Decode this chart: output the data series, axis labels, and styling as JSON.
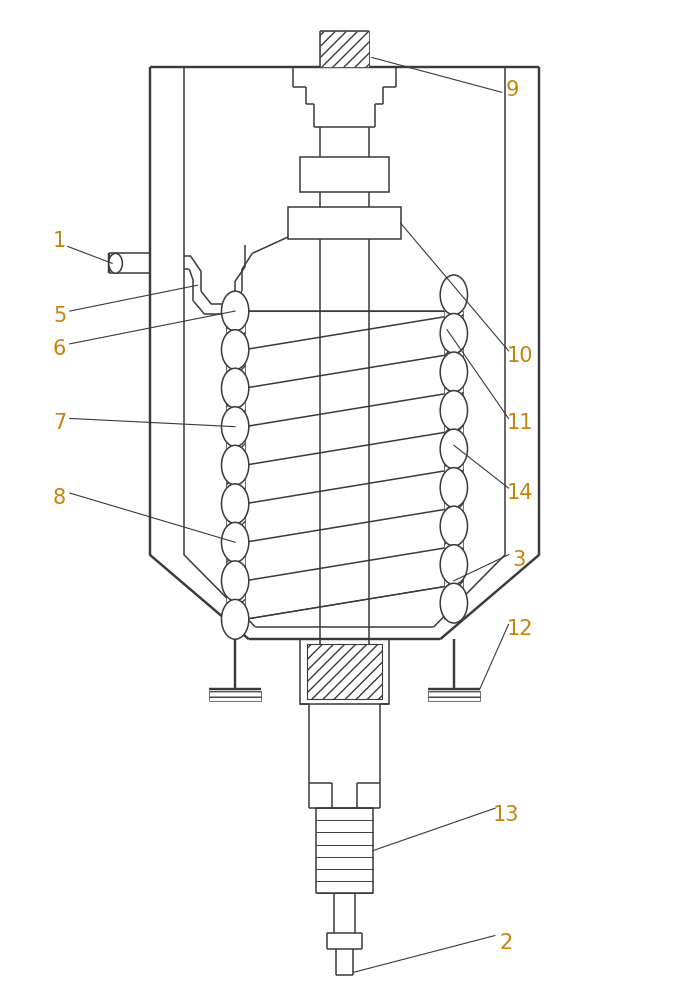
{
  "fig_width": 6.89,
  "fig_height": 10.0,
  "dpi": 100,
  "bg_color": "#ffffff",
  "line_color": "#3a3a3a",
  "line_width": 1.1,
  "label_color": "#c8820a",
  "label_fontsize": 15
}
